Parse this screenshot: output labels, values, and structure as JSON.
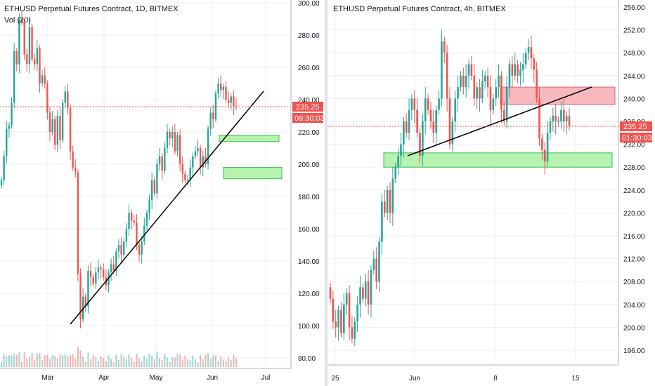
{
  "colors": {
    "up": "#26a69a",
    "down": "#ef5350",
    "grid": "#eceff3",
    "axis_text": "#131722",
    "price_line": "#ef5350",
    "zone_support": "#b6f2b0",
    "zone_support_border": "#3cbf4a",
    "zone_resist": "#f8b8bd",
    "zone_resist_border": "#e0667a",
    "trend_line": "#000000"
  },
  "charts": [
    {
      "title": "ETHUSD Perpetual Futures Contract, 1D, BITMEX",
      "indicator": "Vol (20)",
      "price_tag": "235.25",
      "countdown": "09:30:03",
      "y_ticks": [
        "300.00",
        "280.00",
        "260.00",
        "240.00",
        "220.00",
        "200.00",
        "180.00",
        "160.00",
        "140.00",
        "120.00",
        "100.00",
        "80.00"
      ],
      "x_ticks": [
        "Mar",
        "Apr",
        "May",
        "Jun",
        "Jul"
      ]
    },
    {
      "title": "ETHUSD Perpetual Futures Contract, 4h, BITMEX",
      "price_tag": "235.25",
      "countdown": "01:30:03",
      "y_ticks": [
        "256.00",
        "252.00",
        "248.00",
        "244.00",
        "240.00",
        "236.00",
        "232.00",
        "228.00",
        "224.00",
        "220.00",
        "216.00",
        "212.00",
        "208.00",
        "204.00",
        "200.00",
        "196.00"
      ],
      "x_ticks": [
        "25",
        "Jun",
        "8",
        "15"
      ]
    }
  ],
  "chart_data": [
    {
      "type": "candlestick",
      "title": "ETHUSD Perpetual Futures Contract, 1D, BITMEX",
      "symbol": "ETHUSD",
      "interval": "1D",
      "exchange": "BITMEX",
      "indicator": "Vol (20)",
      "ylim": [
        75,
        305
      ],
      "y_ticks": [
        300,
        280,
        260,
        240,
        220,
        200,
        180,
        160,
        140,
        120,
        100,
        80
      ],
      "x_ticks": [
        "Mar",
        "Apr",
        "May",
        "Jun",
        "Jul"
      ],
      "last_price": 235.25,
      "countdown": "09:30:03",
      "closes": [
        190,
        205,
        222,
        224,
        238,
        270,
        262,
        290,
        288,
        268,
        262,
        285,
        265,
        262,
        272,
        250,
        255,
        250,
        232,
        220,
        228,
        212,
        230,
        215,
        238,
        245,
        235,
        208,
        198,
        195,
        132,
        104,
        118,
        112,
        134,
        130,
        126,
        133,
        136,
        135,
        130,
        125,
        133,
        138,
        134,
        146,
        150,
        144,
        152,
        160,
        170,
        165,
        164,
        150,
        144,
        152,
        162,
        170,
        178,
        190,
        182,
        200,
        205,
        196,
        210,
        220,
        216,
        220,
        208,
        218,
        200,
        194,
        190,
        190,
        198,
        205,
        208,
        210,
        198,
        205,
        200,
        222,
        232,
        228,
        244,
        250,
        246,
        248,
        240,
        238,
        242,
        236,
        235.25
      ],
      "support_zones": [
        [
          214,
          218
        ],
        [
          191,
          198
        ]
      ],
      "trend_line": [
        [
          100,
          98
        ],
        [
          375,
          130
        ]
      ]
    },
    {
      "type": "candlestick",
      "title": "ETHUSD Perpetual Futures Contract, 4h, BITMEX",
      "symbol": "ETHUSD",
      "interval": "4h",
      "exchange": "BITMEX",
      "ylim": [
        193.5,
        257.5
      ],
      "y_ticks": [
        256,
        252,
        248,
        244,
        240,
        236,
        232,
        228,
        224,
        220,
        216,
        212,
        208,
        204,
        200,
        196
      ],
      "x_ticks": [
        "25",
        "Jun",
        "8",
        "15"
      ],
      "last_price": 235.25,
      "countdown": "01:30:03",
      "closes": [
        205,
        201,
        200,
        203,
        199,
        204,
        206,
        200,
        198,
        201,
        204,
        207,
        205,
        208,
        204,
        210,
        212,
        208,
        215,
        222,
        220,
        224,
        220,
        226,
        228,
        230,
        232,
        236,
        234,
        238,
        240,
        238,
        234,
        230,
        236,
        240,
        238,
        236,
        234,
        238,
        240,
        250,
        248,
        240,
        232,
        236,
        240,
        242,
        244,
        242,
        244,
        246,
        244,
        240,
        242,
        240,
        243,
        244,
        242,
        238,
        240,
        242,
        244,
        238,
        236,
        242,
        246,
        244,
        246,
        244,
        245,
        246,
        248,
        249,
        247,
        245,
        240,
        233,
        231,
        229,
        234,
        236,
        237,
        236,
        236,
        238,
        236,
        237,
        235.25
      ],
      "support_zones": [
        [
          228,
          230.5
        ]
      ],
      "resist_zones": [
        [
          239,
          242
        ]
      ],
      "trend_line": [
        [
          580,
          222
        ],
        [
          842,
          124
        ]
      ]
    }
  ]
}
